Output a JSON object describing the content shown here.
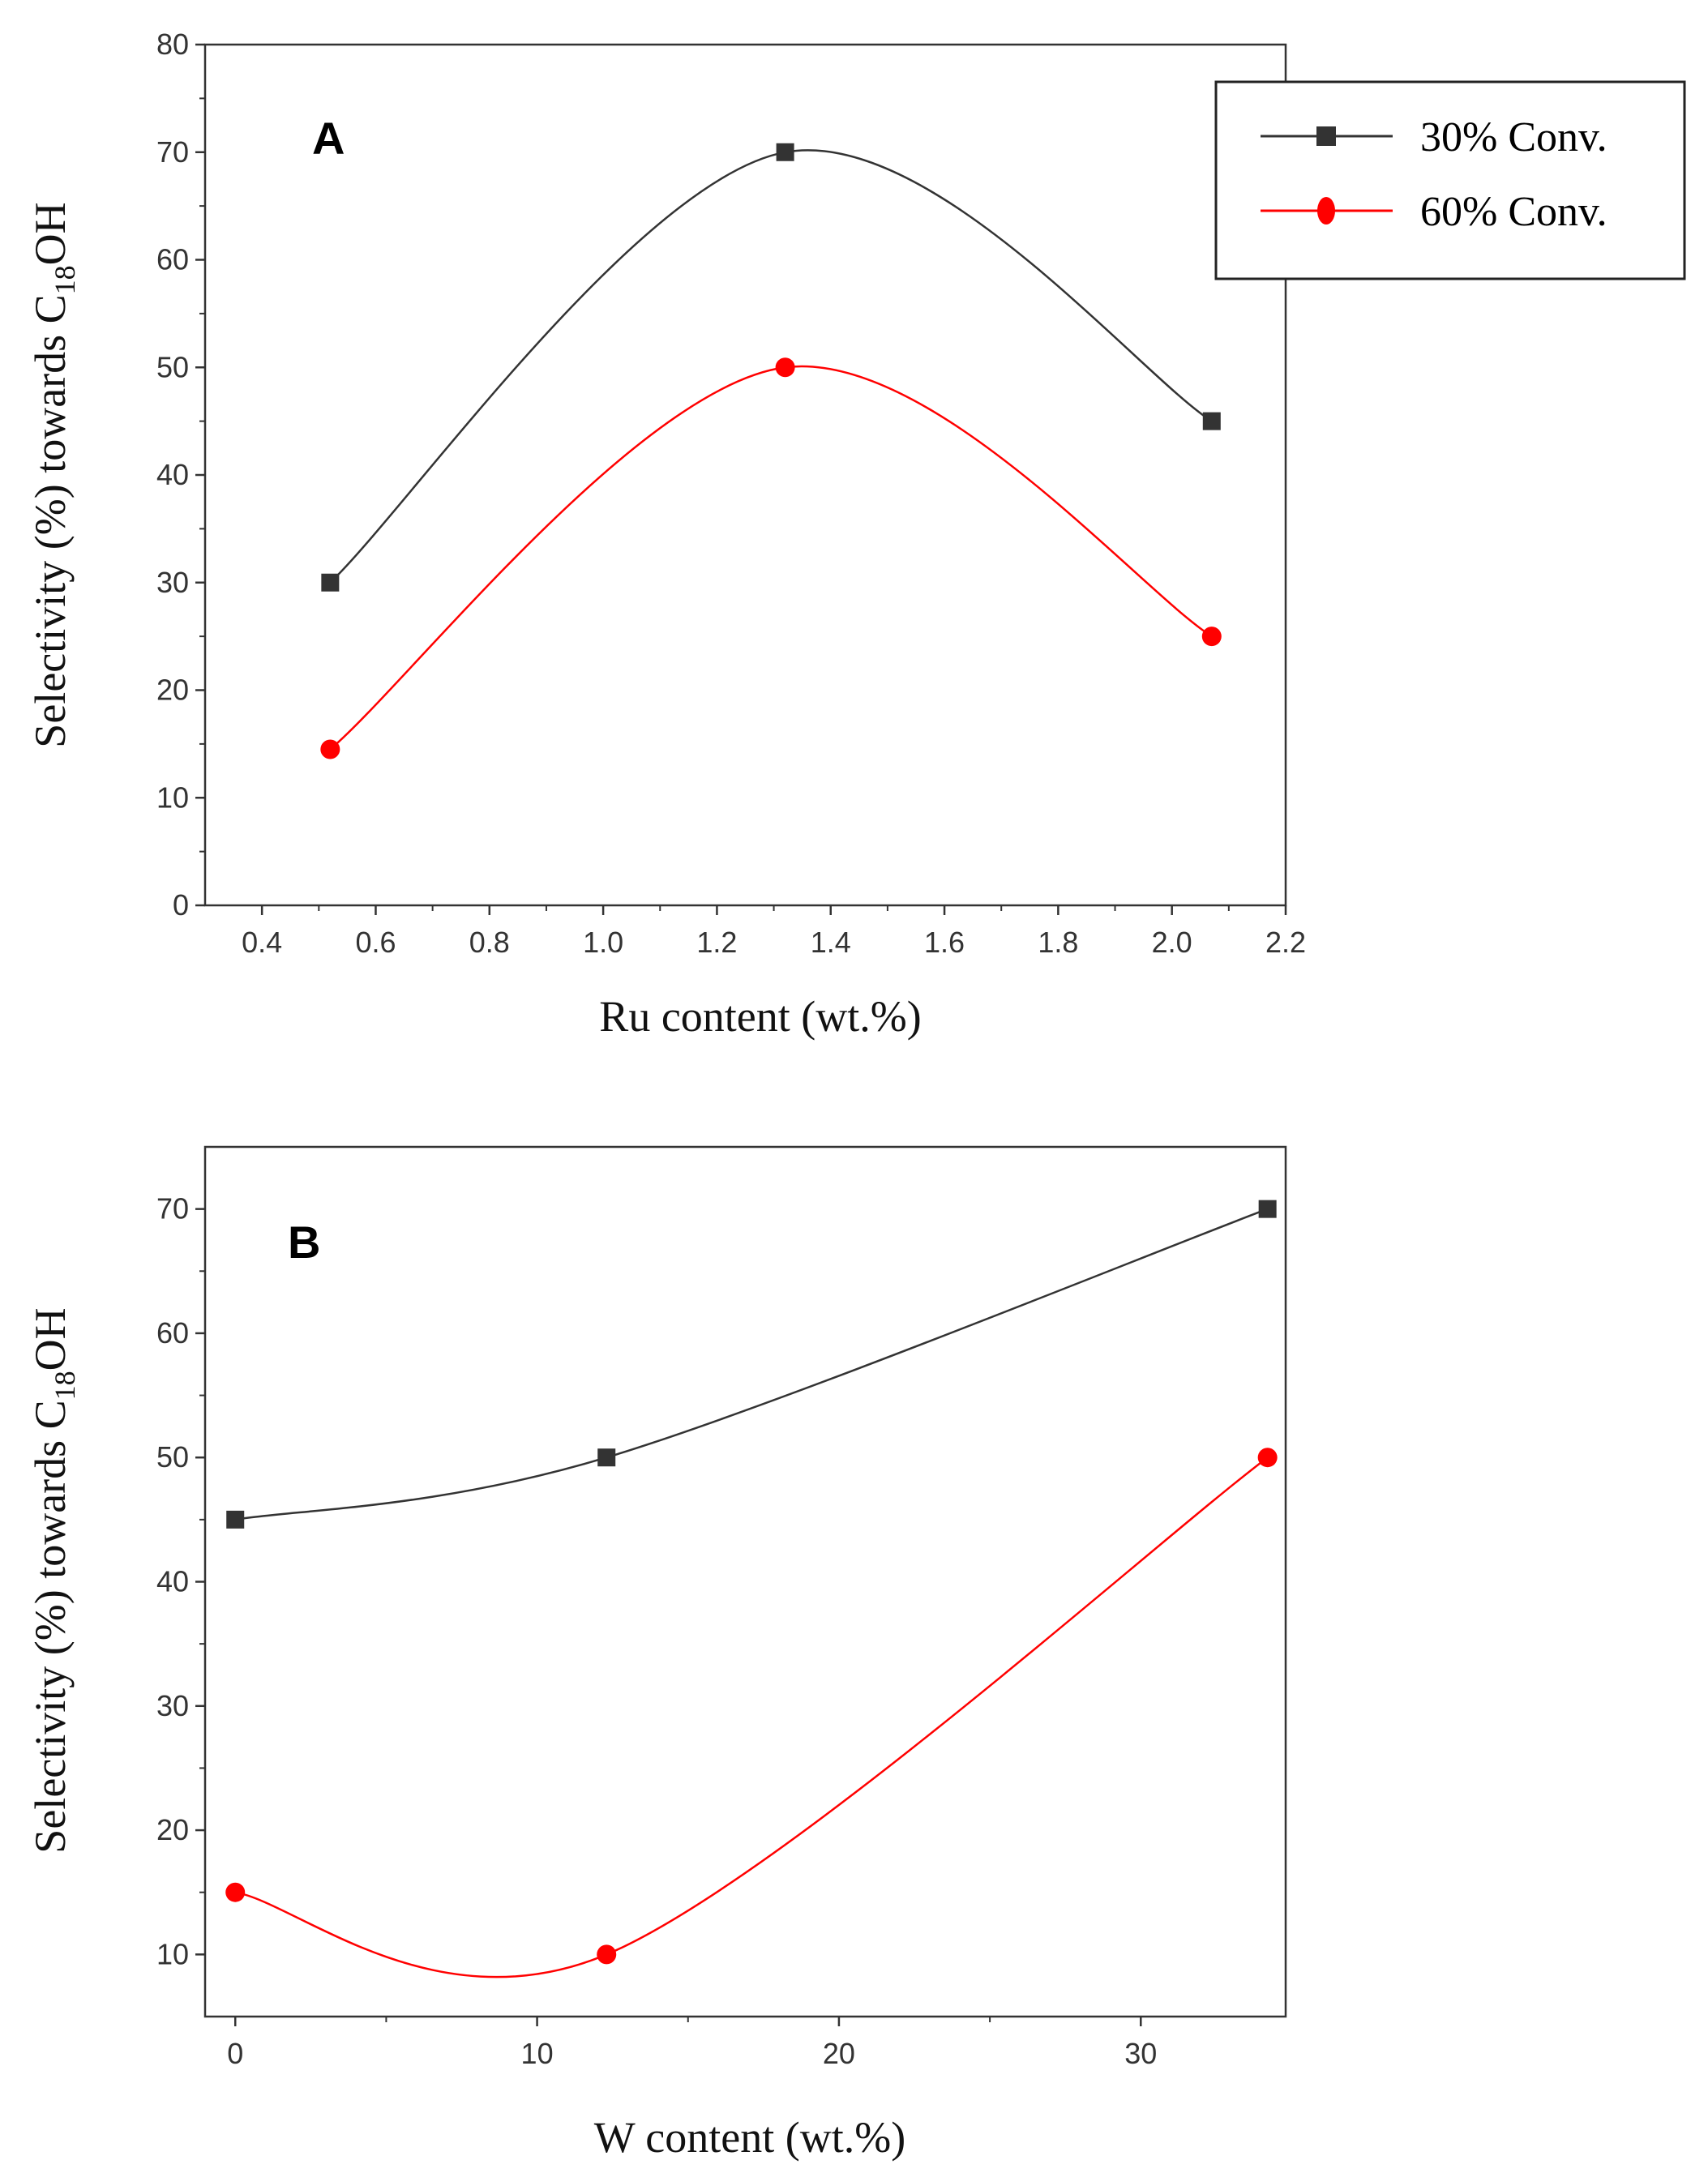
{
  "legend": {
    "items": [
      {
        "label": "30% Conv.",
        "color": "#333333",
        "marker": "square"
      },
      {
        "label": "60% Conv.",
        "color": "#ff0000",
        "marker": "circle"
      }
    ]
  },
  "chart_data": [
    {
      "type": "line",
      "panel_label": "A",
      "title": "",
      "xlabel": "Ru content (wt.%)",
      "ylabel_main": "Selectivity  (%) towards C",
      "ylabel_sub": "18",
      "ylabel_tail": "OH",
      "xlim": [
        0.3,
        2.2
      ],
      "ylim": [
        0,
        80
      ],
      "xticks": [
        "0.4",
        "0.6",
        "0.8",
        "1.0",
        "1.2",
        "1.4",
        "1.6",
        "1.8",
        "2.0",
        "2.2"
      ],
      "xtick_values": [
        0.4,
        0.6,
        0.8,
        1.0,
        1.2,
        1.4,
        1.6,
        1.8,
        2.0,
        2.2
      ],
      "yticks": [
        "0",
        "10",
        "20",
        "30",
        "40",
        "50",
        "60",
        "70",
        "80"
      ],
      "ytick_values": [
        0,
        10,
        20,
        30,
        40,
        50,
        60,
        70,
        80
      ],
      "grid": false,
      "series": [
        {
          "name": "30% Conv.",
          "x": [
            0.52,
            1.32,
            2.07
          ],
          "y": [
            30,
            70,
            45
          ]
        },
        {
          "name": "60% Conv.",
          "x": [
            0.52,
            1.32,
            2.07
          ],
          "y": [
            14.5,
            50,
            25
          ]
        }
      ]
    },
    {
      "type": "line",
      "panel_label": "B",
      "title": "",
      "xlabel": "W content (wt.%)",
      "ylabel_main": "Selectivity  (%) towards C",
      "ylabel_sub": "18",
      "ylabel_tail": "OH",
      "xlim": [
        -1,
        34.8
      ],
      "ylim": [
        5,
        75
      ],
      "xticks": [
        "0",
        "10",
        "20",
        "30"
      ],
      "xtick_values": [
        0,
        10,
        20,
        30
      ],
      "yticks": [
        "10",
        "20",
        "30",
        "40",
        "50",
        "60",
        "70"
      ],
      "ytick_values": [
        10,
        20,
        30,
        40,
        50,
        60,
        70
      ],
      "grid": false,
      "series": [
        {
          "name": "30% Conv.",
          "x": [
            0,
            12.3,
            34.2
          ],
          "y": [
            45,
            50,
            70
          ]
        },
        {
          "name": "60% Conv.",
          "x": [
            0,
            12.3,
            34.2
          ],
          "y": [
            15,
            10,
            50
          ]
        }
      ]
    }
  ]
}
